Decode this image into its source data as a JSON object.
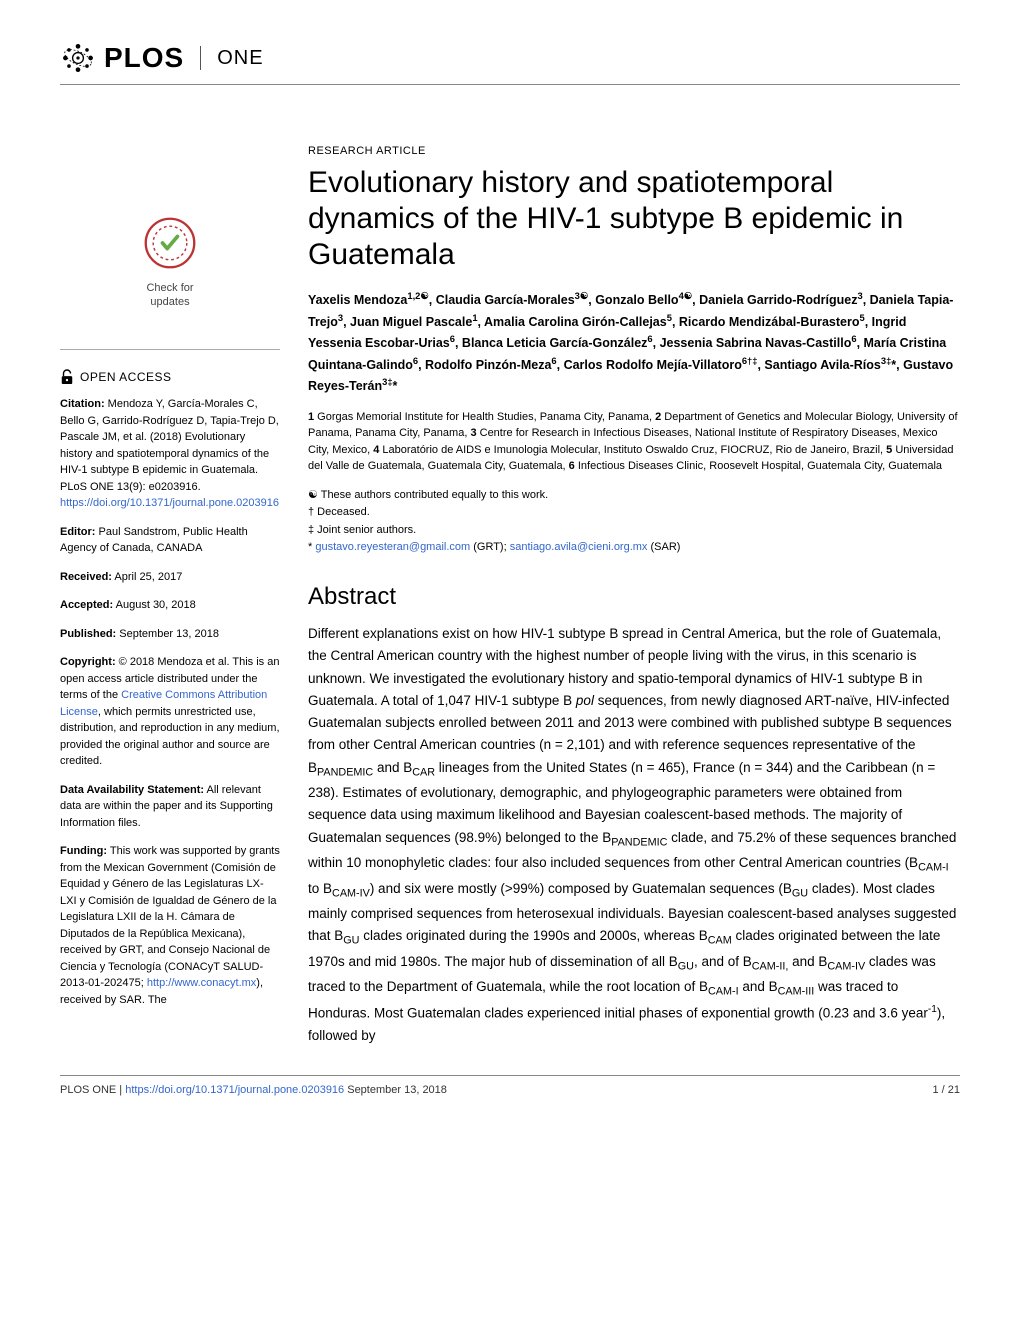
{
  "header": {
    "brand": "PLOS",
    "journal": "ONE"
  },
  "check_updates": {
    "line1": "Check for",
    "line2": "updates"
  },
  "open_access_label": "OPEN ACCESS",
  "sidebar": {
    "citation_label": "Citation:",
    "citation_text": " Mendoza Y, García-Morales C, Bello G, Garrido-Rodríguez D, Tapia-Trejo D, Pascale JM, et al. (2018) Evolutionary history and spatiotemporal dynamics of the HIV-1 subtype B epidemic in Guatemala. PLoS ONE 13(9): e0203916. ",
    "citation_link": "https://doi.org/10.1371/journal.pone.0203916",
    "editor_label": "Editor:",
    "editor_text": " Paul Sandstrom, Public Health Agency of Canada, CANADA",
    "received_label": "Received:",
    "received_text": " April 25, 2017",
    "accepted_label": "Accepted:",
    "accepted_text": " August 30, 2018",
    "published_label": "Published:",
    "published_text": " September 13, 2018",
    "copyright_label": "Copyright:",
    "copyright_text1": " © 2018 Mendoza et al. This is an open access article distributed under the terms of the ",
    "copyright_link": "Creative Commons Attribution License",
    "copyright_text2": ", which permits unrestricted use, distribution, and reproduction in any medium, provided the original author and source are credited.",
    "data_label": "Data Availability Statement:",
    "data_text": " All relevant data are within the paper and its Supporting Information files.",
    "funding_label": "Funding:",
    "funding_text1": " This work was supported by grants from the Mexican Government (Comisión de Equidad y Género de las Legislaturas LX-LXI y Comisión de Igualdad de Género de la Legislatura LXII de la H. Cámara de Diputados de la República Mexicana), received by GRT, and Consejo Nacional de Ciencia y Tecnología (CONACyT SALUD-2013-01-202475; ",
    "funding_link": "http://www.conacyt.mx",
    "funding_text2": "), received by SAR. The"
  },
  "article": {
    "type": "RESEARCH ARTICLE",
    "title": "Evolutionary history and spatiotemporal dynamics of the HIV-1 subtype B epidemic in Guatemala",
    "affiliations_html": "<b>1</b> Gorgas Memorial Institute for Health Studies, Panama City, Panama, <b>2</b> Department of Genetics and Molecular Biology, University of Panama, Panama City, Panama, <b>3</b> Centre for Research in Infectious Diseases, National Institute of Respiratory Diseases, Mexico City, Mexico, <b>4</b> Laboratório de AIDS e Imunologia Molecular, Instituto Oswaldo Cruz, FIOCRUZ, Rio de Janeiro, Brazil, <b>5</b> Universidad del Valle de Guatemala, Guatemala City, Guatemala, <b>6</b> Infectious Diseases Clinic, Roosevelt Hospital, Guatemala City, Guatemala",
    "notes": {
      "equal": "☯ These authors contributed equally to this work.",
      "deceased": "† Deceased.",
      "joint": "‡ Joint senior authors.",
      "corr_prefix": "* ",
      "corr_email1": "gustavo.reyesteran@gmail.com",
      "corr_mid1": " (GRT); ",
      "corr_email2": "santiago.avila@cieni.org.mx",
      "corr_mid2": " (SAR)"
    },
    "abstract_heading": "Abstract"
  },
  "footer": {
    "left_prefix": "PLOS ONE | ",
    "left_link": "https://doi.org/10.1371/journal.pone.0203916",
    "left_date": "    September 13, 2018",
    "right": "1 / 21"
  },
  "colors": {
    "link": "#3366cc",
    "text": "#000000",
    "rule": "#888888"
  }
}
